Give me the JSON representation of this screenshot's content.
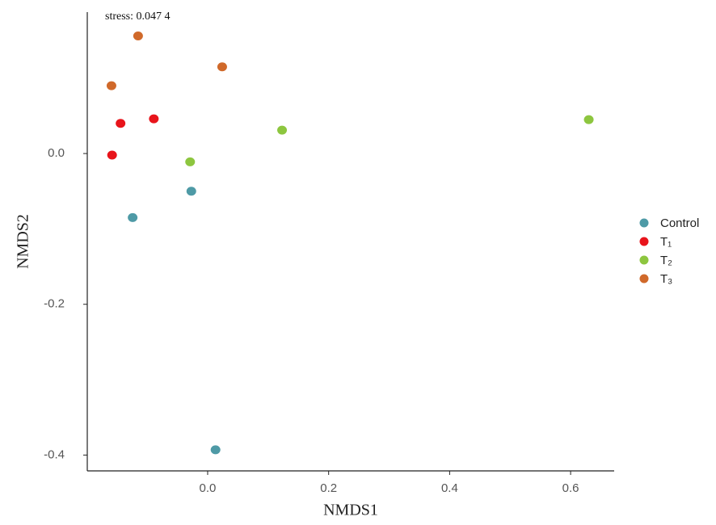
{
  "chart_data": {
    "type": "scatter",
    "annotation": "stress: 0.047 4",
    "x_label": "NMDS1",
    "y_label": "NMDS2",
    "xlim": [
      -0.199,
      0.672
    ],
    "ylim": [
      -0.421,
      0.1876
    ],
    "xticks": [
      {
        "value": 0,
        "label": "0.0"
      },
      0.2,
      0.4,
      0.6
    ],
    "yticks": [
      {
        "value": 0,
        "label": "0.0"
      },
      -0.2,
      -0.4
    ],
    "grid": false,
    "legend": "right",
    "series": [
      {
        "name": "Control",
        "color": "#4e9aa6",
        "x": [
          -0.124,
          -0.027,
          0.013
        ],
        "values": [
          -0.085,
          -0.05,
          -0.393
        ]
      },
      {
        "name": "T₁",
        "color": "#e8141b",
        "x": [
          -0.158,
          -0.144,
          -0.089
        ],
        "values": [
          -0.002,
          0.04,
          0.046
        ]
      },
      {
        "name": "T₂",
        "color": "#8dc63f",
        "x": [
          -0.029,
          0.123,
          0.63
        ],
        "values": [
          -0.011,
          0.031,
          0.045
        ]
      },
      {
        "name": "T₃",
        "color": "#d0692a",
        "x": [
          -0.159,
          -0.115,
          0.024
        ],
        "values": [
          0.09,
          0.156,
          0.115
        ]
      }
    ]
  }
}
